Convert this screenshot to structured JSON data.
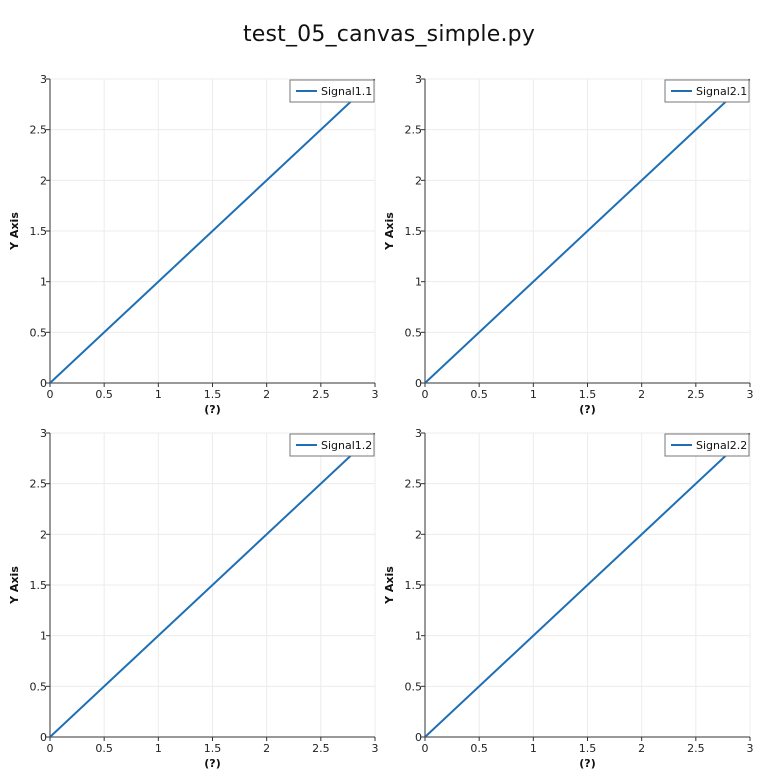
{
  "title": "test_05_canvas_simple.py",
  "colors": {
    "series": "#1f6fb4",
    "axis": "#333333",
    "grid": "#ececec",
    "legend_border": "#777777"
  },
  "chart_data": [
    {
      "type": "line",
      "xlabel": "(?)",
      "ylabel": "Y Axis",
      "xlim": [
        0,
        3
      ],
      "ylim": [
        0,
        3
      ],
      "xticks": [
        0,
        0.5,
        1,
        1.5,
        2,
        2.5,
        3
      ],
      "yticks": [
        0,
        0.5,
        1,
        1.5,
        2,
        2.5,
        3
      ],
      "grid": true,
      "legend_position": "top-right",
      "series": [
        {
          "name": "Signal1.1",
          "x": [
            0,
            3
          ],
          "y": [
            0,
            3
          ]
        }
      ]
    },
    {
      "type": "line",
      "xlabel": "(?)",
      "ylabel": "Y Axis",
      "xlim": [
        0,
        3
      ],
      "ylim": [
        0,
        3
      ],
      "xticks": [
        0,
        0.5,
        1,
        1.5,
        2,
        2.5,
        3
      ],
      "yticks": [
        0,
        0.5,
        1,
        1.5,
        2,
        2.5,
        3
      ],
      "grid": true,
      "legend_position": "top-right",
      "series": [
        {
          "name": "Signal2.1",
          "x": [
            0,
            3
          ],
          "y": [
            0,
            3
          ]
        }
      ]
    },
    {
      "type": "line",
      "xlabel": "(?)",
      "ylabel": "Y Axis",
      "xlim": [
        0,
        3
      ],
      "ylim": [
        0,
        3
      ],
      "xticks": [
        0,
        0.5,
        1,
        1.5,
        2,
        2.5,
        3
      ],
      "yticks": [
        0,
        0.5,
        1,
        1.5,
        2,
        2.5,
        3
      ],
      "grid": true,
      "legend_position": "top-right",
      "series": [
        {
          "name": "Signal1.2",
          "x": [
            0,
            3
          ],
          "y": [
            0,
            3
          ]
        }
      ]
    },
    {
      "type": "line",
      "xlabel": "(?)",
      "ylabel": "Y Axis",
      "xlim": [
        0,
        3
      ],
      "ylim": [
        0,
        3
      ],
      "xticks": [
        0,
        0.5,
        1,
        1.5,
        2,
        2.5,
        3
      ],
      "yticks": [
        0,
        0.5,
        1,
        1.5,
        2,
        2.5,
        3
      ],
      "grid": true,
      "legend_position": "top-right",
      "series": [
        {
          "name": "Signal2.2",
          "x": [
            0,
            3
          ],
          "y": [
            0,
            3
          ]
        }
      ]
    }
  ]
}
